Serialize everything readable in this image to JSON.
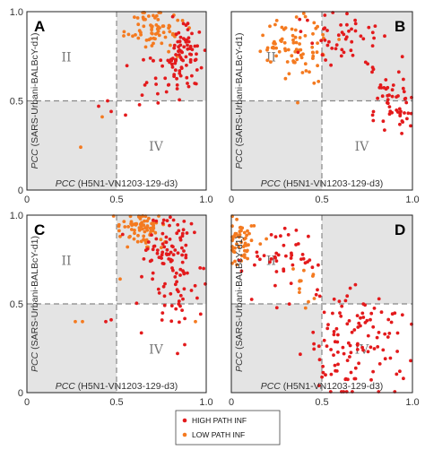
{
  "colors": {
    "high": "#e31a1c",
    "low": "#f47a20",
    "quad_fill": "#e4e4e4",
    "frame": "#222222",
    "dash": "#888888"
  },
  "legend": {
    "high_label": "HIGH PATH INF",
    "low_label": "LOW PATH INF"
  },
  "chart_data": [
    {
      "type": "scatter",
      "panel": "A",
      "xlabel_italic": "PCC",
      "xlabel_rest": "(H5N1-VN1203-129-d3)",
      "ylabel_italic": "PCC",
      "ylabel_rest": "(SARS-Urbani-BALBcY-d1)",
      "xlim": [
        0,
        1
      ],
      "ylim": [
        0,
        1
      ],
      "xticks": [
        "0",
        "0.5",
        "1.0"
      ],
      "yticks": [
        "0",
        "0.5",
        "1.0"
      ],
      "quadrants": [
        "II",
        "IV"
      ],
      "reference_lines": [
        0.5,
        0.5
      ],
      "clusters": [
        {
          "series": "low",
          "n": 70,
          "cx": 0.72,
          "cy": 0.9,
          "sx": 0.08,
          "sy": 0.06
        },
        {
          "series": "high",
          "n": 80,
          "cx": 0.87,
          "cy": 0.76,
          "sx": 0.06,
          "sy": 0.09
        },
        {
          "series": "high",
          "n": 20,
          "cx": 0.76,
          "cy": 0.6,
          "sx": 0.09,
          "sy": 0.08
        }
      ],
      "outliers": {
        "high": [
          [
            0.4,
            0.47
          ],
          [
            0.45,
            0.5
          ],
          [
            0.47,
            0.44
          ],
          [
            0.55,
            0.42
          ]
        ],
        "low": [
          [
            0.3,
            0.24
          ],
          [
            0.42,
            0.41
          ]
        ]
      }
    },
    {
      "type": "scatter",
      "panel": "B",
      "xlabel_italic": "PCC",
      "xlabel_rest": "(H5N1-VN1203-129-d3)",
      "ylabel_italic": "PCC",
      "ylabel_rest": "(SARS-Urbani-BALBcY-d1)",
      "xlim": [
        0,
        1
      ],
      "ylim": [
        0,
        1
      ],
      "xticks": [
        "0",
        "0.5",
        "1.0"
      ],
      "yticks": [
        "0",
        "0.5",
        "1.0"
      ],
      "quadrants": [
        "II",
        "IV"
      ],
      "reference_lines": [
        0.5,
        0.5
      ],
      "clusters": [
        {
          "series": "low",
          "n": 60,
          "cx": 0.38,
          "cy": 0.78,
          "sx": 0.09,
          "sy": 0.09
        },
        {
          "series": "high",
          "n": 45,
          "cx": 0.62,
          "cy": 0.86,
          "sx": 0.1,
          "sy": 0.08
        },
        {
          "series": "high",
          "n": 55,
          "cx": 0.88,
          "cy": 0.5,
          "sx": 0.06,
          "sy": 0.1
        },
        {
          "series": "low",
          "n": 18,
          "cx": 0.26,
          "cy": 0.86,
          "sx": 0.05,
          "sy": 0.08
        }
      ],
      "outliers": {
        "high": [
          [
            0.99,
            0.36
          ],
          [
            0.97,
            0.4
          ],
          [
            0.78,
            0.42
          ],
          [
            0.55,
            0.7
          ]
        ],
        "low": [
          [
            0.36,
            0.97
          ],
          [
            0.4,
            0.99
          ]
        ]
      }
    },
    {
      "type": "scatter",
      "panel": "C",
      "xlabel_italic": "PCC",
      "xlabel_rest": "(H5N1-VN1203-129-d3)",
      "ylabel_italic": "PCC",
      "ylabel_rest": "(SARS-Urbani-BALBcY-d1)",
      "xlim": [
        0,
        1
      ],
      "ylim": [
        0,
        1
      ],
      "xticks": [
        "0",
        "0.5",
        "1.0"
      ],
      "yticks": [
        "0",
        "0.5",
        "1.0"
      ],
      "quadrants": [
        "II",
        "IV"
      ],
      "reference_lines": [
        0.5,
        0.5
      ],
      "clusters": [
        {
          "series": "low",
          "n": 75,
          "cx": 0.63,
          "cy": 0.92,
          "sx": 0.07,
          "sy": 0.05
        },
        {
          "series": "high",
          "n": 80,
          "cx": 0.8,
          "cy": 0.8,
          "sx": 0.08,
          "sy": 0.1
        },
        {
          "series": "high",
          "n": 35,
          "cx": 0.82,
          "cy": 0.54,
          "sx": 0.08,
          "sy": 0.1
        }
      ],
      "outliers": {
        "high": [
          [
            0.84,
            0.22
          ],
          [
            0.88,
            0.27
          ],
          [
            0.44,
            0.4
          ],
          [
            0.47,
            0.41
          ]
        ],
        "low": [
          [
            0.27,
            0.4
          ],
          [
            0.31,
            0.4
          ],
          [
            0.52,
            0.64
          ],
          [
            0.94,
            0.4
          ]
        ]
      }
    },
    {
      "type": "scatter",
      "panel": "D",
      "xlabel_italic": "PCC",
      "xlabel_rest": "(H5N1-VN1203-129-d3)",
      "ylabel_italic": "PCC",
      "ylabel_rest": "(SARS-Urbani-BALBcY-d1)",
      "xlim": [
        0,
        1
      ],
      "ylim": [
        0,
        1
      ],
      "xticks": [
        "0",
        "0.5",
        "1.0"
      ],
      "yticks": [
        "0",
        "0.5",
        "1.0"
      ],
      "quadrants": [
        "II",
        "IV"
      ],
      "reference_lines": [
        0.5,
        0.5
      ],
      "clusters": [
        {
          "series": "low",
          "n": 55,
          "cx": 0.06,
          "cy": 0.87,
          "sx": 0.04,
          "sy": 0.06
        },
        {
          "series": "high",
          "n": 45,
          "cx": 0.3,
          "cy": 0.74,
          "sx": 0.1,
          "sy": 0.09
        },
        {
          "series": "high",
          "n": 115,
          "cx": 0.66,
          "cy": 0.3,
          "sx": 0.13,
          "sy": 0.15
        },
        {
          "series": "low",
          "n": 12,
          "cx": 0.42,
          "cy": 0.58,
          "sx": 0.06,
          "sy": 0.06
        }
      ],
      "outliers": {
        "high": [
          [
            0.93,
            0.12
          ],
          [
            0.95,
            0.08
          ],
          [
            0.99,
            0.18
          ],
          [
            0.52,
            0.1
          ]
        ],
        "low": [
          [
            0.02,
            0.74
          ],
          [
            0.03,
            0.72
          ]
        ]
      }
    }
  ]
}
